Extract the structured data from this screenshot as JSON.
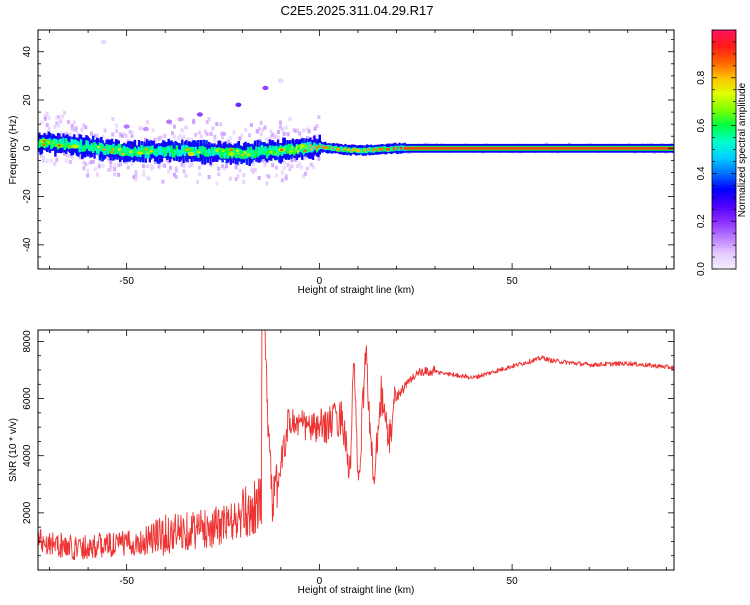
{
  "title": "C2E5.2025.311.04.29.R17",
  "colors": {
    "snr_line": "#ee3333",
    "colormap": [
      "#f4f0ff",
      "#e4c8ff",
      "#b97aff",
      "#8a2bff",
      "#4b00ff",
      "#0000ff",
      "#0070ff",
      "#00d0ff",
      "#00ffc8",
      "#00ff40",
      "#80ff00",
      "#e0ff00",
      "#ffc000",
      "#ff6000",
      "#ff1a1a",
      "#ff1460"
    ]
  },
  "chart_data": [
    {
      "type": "heatmap",
      "title": "C2E5.2025.311.04.29.R17",
      "xlabel": "Height of straight line (km)",
      "ylabel": "Frequency (Hz)",
      "xlim": [
        -73,
        92
      ],
      "ylim": [
        -50,
        49
      ],
      "xticks": [
        -50,
        0,
        50
      ],
      "yticks": [
        40,
        20,
        0,
        -20,
        -40
      ],
      "x_tick_labels": [
        "-50",
        "0",
        "50"
      ],
      "y_tick_labels": [
        "40",
        "20",
        "0",
        "-20",
        "-40"
      ],
      "colorbar": {
        "label": "Normalized spectral amplitude",
        "range": [
          0,
          1
        ],
        "ticks": [
          0.0,
          0.2,
          0.4,
          0.6,
          0.8
        ],
        "tick_labels": [
          "0.0",
          "0.2",
          "0.4",
          "0.6",
          "0.8"
        ]
      },
      "ridge": {
        "description": "dominant frequency ridge vs height",
        "x": [
          -73,
          -60,
          -50,
          -40,
          -30,
          -20,
          -10,
          -5,
          0,
          10,
          20,
          30,
          50,
          70,
          92
        ],
        "center_hz": [
          2.5,
          0.5,
          -1.5,
          -1.0,
          -1.5,
          -2.0,
          -1.0,
          0.0,
          0.5,
          -1.0,
          0.0,
          0.0,
          0.0,
          0.0,
          0.0
        ],
        "amplitude": [
          0.45,
          0.4,
          0.4,
          0.45,
          0.45,
          0.5,
          0.6,
          0.75,
          0.85,
          0.8,
          0.9,
          0.9,
          0.9,
          0.9,
          0.9
        ]
      },
      "scatter_points": [
        {
          "x": -56,
          "y": 44,
          "amp": 0.05
        },
        {
          "x": -39,
          "y": 11,
          "amp": 0.15
        },
        {
          "x": -36,
          "y": 12,
          "amp": 0.1
        },
        {
          "x": -31,
          "y": 14,
          "amp": 0.2
        },
        {
          "x": -21,
          "y": 18,
          "amp": 0.25
        },
        {
          "x": -14,
          "y": 25,
          "amp": 0.2
        },
        {
          "x": -10,
          "y": 28,
          "amp": 0.05
        },
        {
          "x": -45,
          "y": 8,
          "amp": 0.12
        },
        {
          "x": -50,
          "y": 9,
          "amp": 0.15
        },
        {
          "x": -25,
          "y": 6,
          "amp": 0.1
        }
      ]
    },
    {
      "type": "line",
      "xlabel": "Height of straight line (km)",
      "ylabel": "SNR (10 * v/v)",
      "xlim": [
        -73,
        92
      ],
      "ylim": [
        0,
        8400
      ],
      "xticks": [
        -50,
        0,
        50
      ],
      "yticks": [
        2000,
        4000,
        6000,
        8000
      ],
      "x_tick_labels": [
        "-50",
        "0",
        "50"
      ],
      "y_tick_labels": [
        "2000",
        "4000",
        "6000",
        "8000"
      ],
      "series": [
        {
          "name": "SNR",
          "x": [
            -73,
            -65,
            -55,
            -45,
            -35,
            -28,
            -20,
            -15,
            -14.5,
            -12,
            -8,
            -3,
            0,
            3,
            6,
            8,
            9,
            10,
            11,
            12,
            14,
            16,
            18,
            20,
            25,
            30,
            40,
            50,
            58,
            60,
            70,
            80,
            92
          ],
          "y": [
            900,
            600,
            700,
            800,
            1100,
            1200,
            1500,
            2000,
            8000,
            1800,
            5000,
            4800,
            4700,
            4900,
            5100,
            3000,
            7500,
            2500,
            4700,
            7500,
            2800,
            6000,
            4200,
            6000,
            6800,
            6900,
            6700,
            7100,
            7400,
            7300,
            7150,
            7200,
            7050
          ]
        }
      ]
    }
  ]
}
